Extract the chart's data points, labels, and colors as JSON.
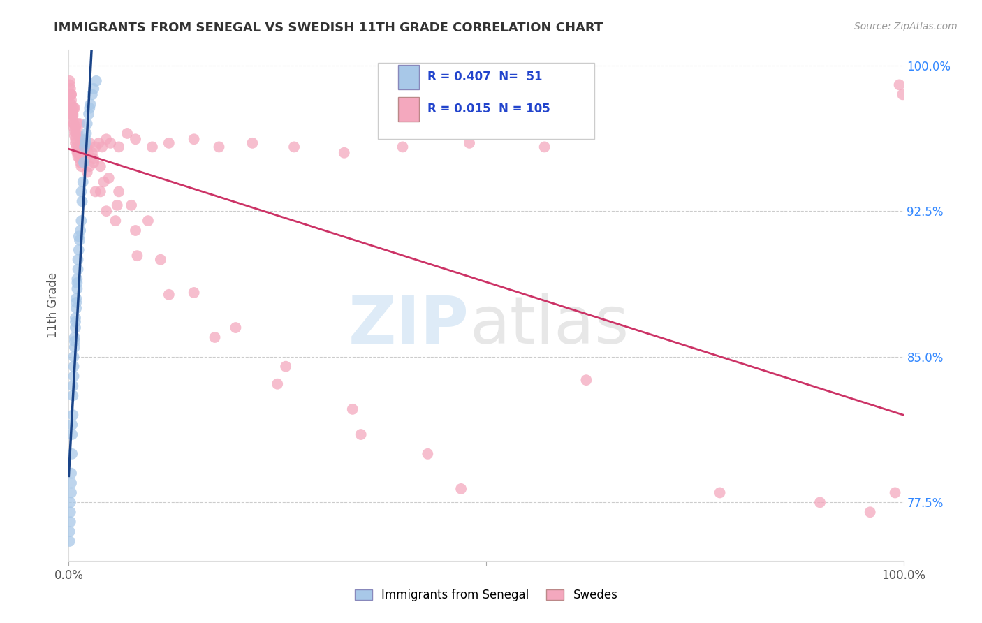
{
  "title": "IMMIGRANTS FROM SENEGAL VS SWEDISH 11TH GRADE CORRELATION CHART",
  "source": "Source: ZipAtlas.com",
  "ylabel": "11th Grade",
  "xlim": [
    0.0,
    1.0
  ],
  "ylim": [
    0.745,
    1.008
  ],
  "yticks": [
    0.775,
    0.85,
    0.925,
    1.0
  ],
  "ytick_labels": [
    "77.5%",
    "85.0%",
    "92.5%",
    "100.0%"
  ],
  "xticks": [
    0.0,
    0.5,
    1.0
  ],
  "xtick_labels": [
    "0.0%",
    "",
    "100.0%"
  ],
  "blue_color": "#a8c8e8",
  "pink_color": "#f4a8be",
  "blue_line_color": "#1a4488",
  "pink_line_color": "#cc3366",
  "blue_scatter_x": [
    0.001,
    0.002,
    0.002,
    0.003,
    0.003,
    0.004,
    0.004,
    0.005,
    0.005,
    0.006,
    0.006,
    0.007,
    0.007,
    0.008,
    0.008,
    0.009,
    0.009,
    0.01,
    0.01,
    0.011,
    0.011,
    0.012,
    0.013,
    0.014,
    0.015,
    0.016,
    0.017,
    0.018,
    0.019,
    0.02,
    0.021,
    0.022,
    0.024,
    0.026,
    0.028,
    0.03,
    0.033,
    0.001,
    0.002,
    0.003,
    0.004,
    0.005,
    0.006,
    0.007,
    0.008,
    0.009,
    0.01,
    0.012,
    0.015,
    0.02,
    0.025
  ],
  "blue_scatter_y": [
    0.76,
    0.775,
    0.77,
    0.78,
    0.79,
    0.8,
    0.81,
    0.82,
    0.83,
    0.84,
    0.85,
    0.855,
    0.86,
    0.865,
    0.87,
    0.875,
    0.88,
    0.885,
    0.89,
    0.895,
    0.9,
    0.905,
    0.91,
    0.915,
    0.92,
    0.93,
    0.94,
    0.95,
    0.958,
    0.962,
    0.965,
    0.97,
    0.975,
    0.98,
    0.985,
    0.988,
    0.992,
    0.755,
    0.765,
    0.785,
    0.815,
    0.835,
    0.845,
    0.858,
    0.868,
    0.878,
    0.888,
    0.912,
    0.935,
    0.96,
    0.978
  ],
  "pink_scatter_x": [
    0.001,
    0.002,
    0.002,
    0.003,
    0.003,
    0.004,
    0.004,
    0.005,
    0.005,
    0.006,
    0.006,
    0.007,
    0.007,
    0.008,
    0.008,
    0.009,
    0.01,
    0.01,
    0.011,
    0.012,
    0.012,
    0.013,
    0.014,
    0.015,
    0.016,
    0.017,
    0.018,
    0.019,
    0.02,
    0.022,
    0.025,
    0.028,
    0.032,
    0.036,
    0.04,
    0.045,
    0.05,
    0.06,
    0.07,
    0.08,
    0.1,
    0.12,
    0.15,
    0.18,
    0.22,
    0.27,
    0.33,
    0.4,
    0.48,
    0.57,
    0.002,
    0.004,
    0.006,
    0.008,
    0.011,
    0.014,
    0.018,
    0.023,
    0.03,
    0.038,
    0.048,
    0.06,
    0.075,
    0.095,
    0.005,
    0.009,
    0.015,
    0.022,
    0.032,
    0.045,
    0.003,
    0.007,
    0.013,
    0.02,
    0.03,
    0.042,
    0.058,
    0.08,
    0.11,
    0.15,
    0.2,
    0.26,
    0.34,
    0.43,
    0.001,
    0.003,
    0.006,
    0.01,
    0.016,
    0.025,
    0.038,
    0.056,
    0.082,
    0.12,
    0.175,
    0.25,
    0.35,
    0.47,
    0.62,
    0.78,
    0.9,
    0.96,
    0.99,
    0.995,
    0.999
  ],
  "pink_scatter_y": [
    0.99,
    0.988,
    0.985,
    0.982,
    0.98,
    0.978,
    0.976,
    0.974,
    0.972,
    0.97,
    0.968,
    0.966,
    0.964,
    0.962,
    0.96,
    0.958,
    0.956,
    0.955,
    0.953,
    0.958,
    0.955,
    0.952,
    0.95,
    0.948,
    0.955,
    0.96,
    0.958,
    0.955,
    0.952,
    0.958,
    0.96,
    0.955,
    0.958,
    0.96,
    0.958,
    0.962,
    0.96,
    0.958,
    0.965,
    0.962,
    0.958,
    0.96,
    0.962,
    0.958,
    0.96,
    0.958,
    0.955,
    0.958,
    0.96,
    0.958,
    0.98,
    0.975,
    0.97,
    0.968,
    0.965,
    0.962,
    0.958,
    0.955,
    0.952,
    0.948,
    0.942,
    0.935,
    0.928,
    0.92,
    0.975,
    0.965,
    0.955,
    0.945,
    0.935,
    0.925,
    0.985,
    0.978,
    0.97,
    0.96,
    0.95,
    0.94,
    0.928,
    0.915,
    0.9,
    0.883,
    0.865,
    0.845,
    0.823,
    0.8,
    0.992,
    0.985,
    0.978,
    0.97,
    0.96,
    0.948,
    0.935,
    0.92,
    0.902,
    0.882,
    0.86,
    0.836,
    0.81,
    0.782,
    0.838,
    0.78,
    0.775,
    0.77,
    0.78,
    0.99,
    0.985
  ]
}
